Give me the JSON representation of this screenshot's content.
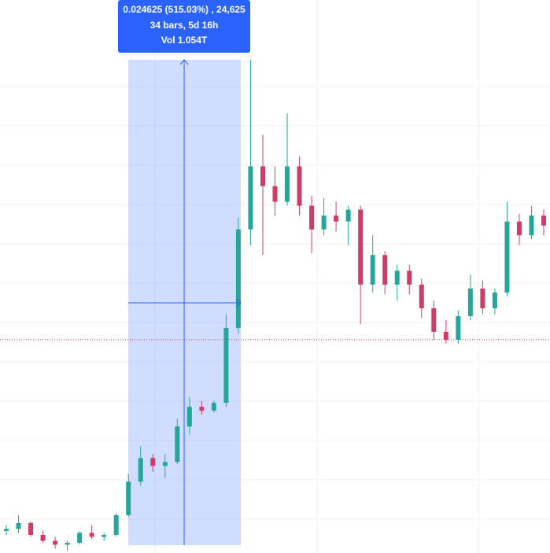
{
  "chart_data": {
    "type": "candlestick",
    "up_color": "#26a69a",
    "down_color": "#cf3d67",
    "ylim": [
      0.00438,
      0.03244
    ],
    "price_line": 0.0152,
    "tooltip": [
      "0.024625 (515.03%) , 24,625",
      "34 bars, 5d 16h",
      "Vol 1.054T"
    ],
    "open": [
      0.0055,
      0.0056,
      0.0059,
      0.0053,
      0.005,
      0.0048,
      0.0049,
      0.0054,
      0.0052,
      0.0053,
      0.0063,
      0.008,
      0.0092,
      0.0088,
      0.009,
      0.0108,
      0.0118,
      0.0116,
      0.012,
      0.0158,
      0.0208,
      0.024,
      0.023,
      0.0222,
      0.024,
      0.022,
      0.0208,
      0.0215,
      0.0212,
      0.0218,
      0.018,
      0.0195,
      0.018,
      0.0187,
      0.018,
      0.0168,
      0.0156,
      0.0152,
      0.0164,
      0.0178,
      0.0168,
      0.0176,
      0.0212,
      0.0205,
      0.0215
    ],
    "high": [
      0.0058,
      0.0063,
      0.006,
      0.0055,
      0.0052,
      0.005,
      0.0055,
      0.0058,
      0.0054,
      0.0064,
      0.0084,
      0.0098,
      0.0094,
      0.0094,
      0.0112,
      0.0123,
      0.0121,
      0.0121,
      0.0165,
      0.0214,
      0.0294,
      0.0256,
      0.024,
      0.0267,
      0.0245,
      0.0225,
      0.0224,
      0.0222,
      0.022,
      0.022,
      0.0205,
      0.0197,
      0.019,
      0.019,
      0.0183,
      0.0172,
      0.0162,
      0.0167,
      0.0185,
      0.0182,
      0.0178,
      0.0222,
      0.0216,
      0.022,
      0.0218
    ],
    "low": [
      0.0053,
      0.0054,
      0.0052,
      0.0049,
      0.0046,
      0.0045,
      0.0048,
      0.0051,
      0.005,
      0.0052,
      0.0062,
      0.0078,
      0.0085,
      0.0082,
      0.0089,
      0.0104,
      0.0114,
      0.0115,
      0.0118,
      0.0155,
      0.02,
      0.0195,
      0.0215,
      0.022,
      0.0215,
      0.0196,
      0.0205,
      0.0207,
      0.02,
      0.016,
      0.0176,
      0.0175,
      0.0172,
      0.0175,
      0.0163,
      0.0152,
      0.015,
      0.015,
      0.0162,
      0.0165,
      0.0165,
      0.0174,
      0.02,
      0.0203,
      0.0205
    ],
    "close": [
      0.0056,
      0.0059,
      0.0053,
      0.005,
      0.0048,
      0.0049,
      0.0054,
      0.0052,
      0.0053,
      0.0063,
      0.008,
      0.0092,
      0.0088,
      0.009,
      0.0108,
      0.0118,
      0.0116,
      0.012,
      0.0158,
      0.0208,
      0.024,
      0.023,
      0.0222,
      0.024,
      0.022,
      0.0208,
      0.0215,
      0.0212,
      0.0218,
      0.018,
      0.0195,
      0.018,
      0.0187,
      0.018,
      0.0168,
      0.0156,
      0.0152,
      0.0164,
      0.0178,
      0.0168,
      0.0176,
      0.0212,
      0.0205,
      0.0215,
      0.021
    ]
  }
}
